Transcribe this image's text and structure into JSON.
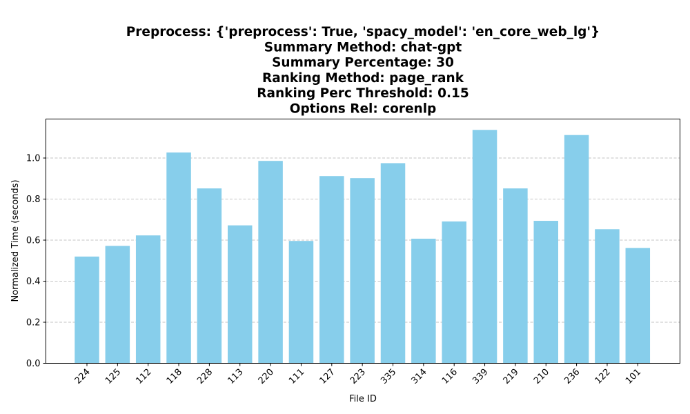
{
  "chart_data": {
    "type": "bar",
    "title_lines": [
      "Preprocess: {'preprocess': True, 'spacy_model': 'en_core_web_lg'}",
      "Summary Method: chat-gpt",
      "Summary Percentage: 30",
      "Ranking Method: page_rank",
      "Ranking Perc Threshold: 0.15",
      "Options Rel: corenlp"
    ],
    "xlabel": "File ID",
    "ylabel": "Normalized Time (seconds)",
    "categories": [
      "224",
      "125",
      "112",
      "118",
      "228",
      "113",
      "220",
      "111",
      "127",
      "223",
      "335",
      "314",
      "116",
      "339",
      "219",
      "210",
      "236",
      "122",
      "101"
    ],
    "values": [
      0.52,
      0.572,
      0.623,
      1.027,
      0.852,
      0.672,
      0.986,
      0.596,
      0.912,
      0.902,
      0.975,
      0.607,
      0.691,
      1.137,
      0.852,
      0.694,
      1.112,
      0.653,
      0.562
    ],
    "ylim": [
      0,
      1.19
    ],
    "yticks": [
      0.0,
      0.2,
      0.4,
      0.6,
      0.8,
      1.0
    ],
    "ytick_labels": [
      "0.0",
      "0.2",
      "0.4",
      "0.6",
      "0.8",
      "1.0"
    ],
    "grid": "horizontal dashed",
    "bar_color": "#87ceeb"
  }
}
